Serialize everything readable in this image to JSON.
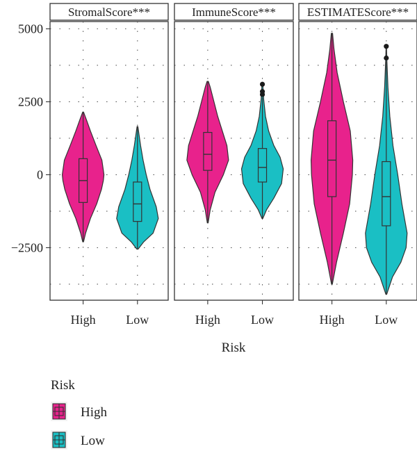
{
  "chart_data": {
    "type": "violin",
    "facets": [
      "StromalScore***",
      "ImmuneScore***",
      "ESTIMATEScore***"
    ],
    "categories": [
      "High",
      "Low"
    ],
    "xlabel": "Risk",
    "ylabel": "",
    "yticks": [
      -2500,
      0,
      2500,
      5000
    ],
    "yticklabels": [
      "−2500",
      "0",
      "2500",
      "5000"
    ],
    "ylim": [
      -4300,
      5250
    ],
    "grid": true,
    "legend": {
      "title": "Risk",
      "position": "bottom-left",
      "entries": [
        {
          "label": "High",
          "color": "#E8228C"
        },
        {
          "label": "Low",
          "color": "#1ABFC4"
        }
      ]
    },
    "series": [
      {
        "facet": "StromalScore***",
        "group": "High",
        "color": "#E8228C",
        "min": -2300,
        "q1": -950,
        "median": -200,
        "q3": 550,
        "max": 2150,
        "outliers": [],
        "density": [
          [
            -2300,
            0.02
          ],
          [
            -2000,
            0.12
          ],
          [
            -1500,
            0.35
          ],
          [
            -1000,
            0.65
          ],
          [
            -500,
            0.88
          ],
          [
            -200,
            0.97
          ],
          [
            0,
            1.0
          ],
          [
            500,
            0.9
          ],
          [
            1000,
            0.62
          ],
          [
            1500,
            0.35
          ],
          [
            1900,
            0.15
          ],
          [
            2150,
            0.02
          ]
        ]
      },
      {
        "facet": "StromalScore***",
        "group": "Low",
        "color": "#1ABFC4",
        "min": -2550,
        "q1": -1600,
        "median": -1000,
        "q3": -250,
        "max": 1650,
        "outliers": [],
        "density": [
          [
            -2550,
            0.03
          ],
          [
            -2300,
            0.3
          ],
          [
            -2000,
            0.75
          ],
          [
            -1500,
            1.0
          ],
          [
            -1100,
            0.9
          ],
          [
            -500,
            0.6
          ],
          [
            0,
            0.42
          ],
          [
            500,
            0.27
          ],
          [
            1000,
            0.15
          ],
          [
            1400,
            0.07
          ],
          [
            1650,
            0.02
          ]
        ]
      },
      {
        "facet": "ImmuneScore***",
        "group": "High",
        "color": "#E8228C",
        "min": -1650,
        "q1": 150,
        "median": 700,
        "q3": 1450,
        "max": 3200,
        "outliers": [],
        "density": [
          [
            -1650,
            0.02
          ],
          [
            -1200,
            0.12
          ],
          [
            -600,
            0.35
          ],
          [
            0,
            0.75
          ],
          [
            500,
            1.0
          ],
          [
            1000,
            0.92
          ],
          [
            1500,
            0.7
          ],
          [
            2000,
            0.48
          ],
          [
            2500,
            0.3
          ],
          [
            3000,
            0.12
          ],
          [
            3200,
            0.03
          ]
        ]
      },
      {
        "facet": "ImmuneScore***",
        "group": "Low",
        "color": "#1ABFC4",
        "min": -1500,
        "q1": -250,
        "median": 250,
        "q3": 900,
        "max": 2650,
        "outliers": [
          2750,
          2850,
          3100
        ],
        "density": [
          [
            -1500,
            0.02
          ],
          [
            -1200,
            0.2
          ],
          [
            -800,
            0.55
          ],
          [
            -300,
            0.92
          ],
          [
            200,
            1.0
          ],
          [
            600,
            0.85
          ],
          [
            1000,
            0.55
          ],
          [
            1500,
            0.3
          ],
          [
            2000,
            0.15
          ],
          [
            2600,
            0.06
          ],
          [
            3100,
            0.02
          ]
        ]
      },
      {
        "facet": "ESTIMATEScore***",
        "group": "High",
        "color": "#E8228C",
        "min": -3750,
        "q1": -750,
        "median": 500,
        "q3": 1850,
        "max": 4850,
        "outliers": [],
        "density": [
          [
            -3750,
            0.02
          ],
          [
            -3000,
            0.22
          ],
          [
            -2000,
            0.55
          ],
          [
            -1000,
            0.85
          ],
          [
            0,
            0.98
          ],
          [
            500,
            1.0
          ],
          [
            1500,
            0.88
          ],
          [
            2500,
            0.55
          ],
          [
            3500,
            0.25
          ],
          [
            4300,
            0.1
          ],
          [
            4850,
            0.03
          ]
        ]
      },
      {
        "facet": "ESTIMATEScore***",
        "group": "Low",
        "color": "#1ABFC4",
        "min": -4100,
        "q1": -1750,
        "median": -750,
        "q3": 450,
        "max": 3900,
        "outliers": [
          4000,
          4400
        ],
        "density": [
          [
            -4100,
            0.02
          ],
          [
            -3500,
            0.3
          ],
          [
            -3000,
            0.7
          ],
          [
            -2500,
            0.95
          ],
          [
            -2000,
            1.0
          ],
          [
            -1000,
            0.75
          ],
          [
            0,
            0.55
          ],
          [
            1000,
            0.32
          ],
          [
            2000,
            0.17
          ],
          [
            3000,
            0.08
          ],
          [
            3900,
            0.03
          ],
          [
            4400,
            0.01
          ]
        ]
      }
    ]
  }
}
